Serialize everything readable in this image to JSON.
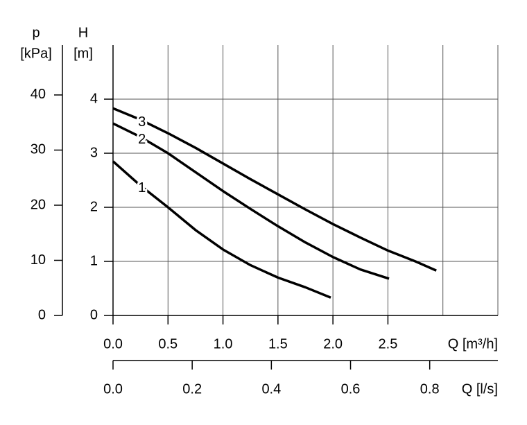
{
  "chart_data": {
    "type": "line",
    "y_label_symbol": "H",
    "y_label_unit": "[m]",
    "y2_label_symbol": "p",
    "y2_label_unit": "[kPa]",
    "x_label": "Q [m³/h]",
    "x2_label": "Q [l/s]",
    "xlim": [
      0,
      3.5
    ],
    "xticks": [
      {
        "value": 0,
        "label": "0.0"
      },
      0.5,
      {
        "value": 1,
        "label": "1.0"
      },
      1.5,
      {
        "value": 2,
        "label": "2.0"
      },
      2.5
    ],
    "xgrid": [
      0.5,
      1,
      1.5,
      2,
      2.5,
      3,
      3.5
    ],
    "x2lim": [
      0,
      0.9722
    ],
    "x2ticks": [
      {
        "value": 0,
        "label": "0.0"
      },
      0.2,
      0.4,
      0.6,
      0.8
    ],
    "ylim": [
      0,
      5
    ],
    "yticks": [
      0,
      1,
      2,
      3,
      4
    ],
    "y2lim": [
      0,
      49.05
    ],
    "y2ticks": [
      0,
      10,
      20,
      30,
      40
    ],
    "grid": true,
    "series": [
      {
        "name": "1",
        "color": "#000000",
        "x": [
          0,
          0.25,
          0.5,
          0.75,
          1.0,
          1.25,
          1.5,
          1.75,
          1.98
        ],
        "values": [
          2.85,
          2.4,
          2.0,
          1.58,
          1.22,
          0.93,
          0.7,
          0.52,
          0.33
        ]
      },
      {
        "name": "2",
        "color": "#000000",
        "x": [
          0,
          0.25,
          0.5,
          0.75,
          1.0,
          1.25,
          1.5,
          1.75,
          2.0,
          2.25,
          2.51
        ],
        "values": [
          3.55,
          3.3,
          3.0,
          2.65,
          2.3,
          1.97,
          1.65,
          1.35,
          1.08,
          0.85,
          0.68
        ]
      },
      {
        "name": "3",
        "color": "#000000",
        "x": [
          0,
          0.25,
          0.5,
          0.75,
          1.0,
          1.25,
          1.5,
          1.75,
          2.0,
          2.25,
          2.5,
          2.75,
          2.94
        ],
        "values": [
          3.83,
          3.62,
          3.37,
          3.1,
          2.81,
          2.52,
          2.24,
          1.96,
          1.69,
          1.44,
          1.2,
          1.0,
          0.83
        ]
      }
    ]
  }
}
